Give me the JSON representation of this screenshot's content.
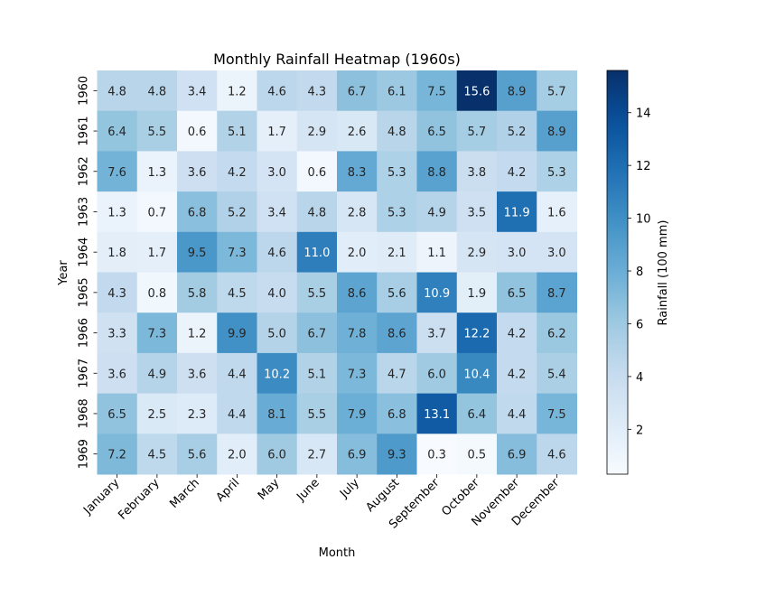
{
  "chart_data": {
    "type": "heatmap",
    "title": "Monthly Rainfall Heatmap (1960s)",
    "xlabel": "Month",
    "ylabel": "Year",
    "colorbar_label": "Rainfall (100 mm)",
    "colormap": "Blues",
    "x": [
      "January",
      "February",
      "March",
      "April",
      "May",
      "June",
      "July",
      "August",
      "September",
      "October",
      "November",
      "December"
    ],
    "y": [
      "1960",
      "1961",
      "1962",
      "1963",
      "1964",
      "1965",
      "1966",
      "1967",
      "1968",
      "1969"
    ],
    "values": [
      [
        4.8,
        4.8,
        3.4,
        1.2,
        4.6,
        4.3,
        6.7,
        6.1,
        7.5,
        15.6,
        8.9,
        5.7
      ],
      [
        6.4,
        5.5,
        0.6,
        5.1,
        1.7,
        2.9,
        2.6,
        4.8,
        6.5,
        5.7,
        5.2,
        8.9
      ],
      [
        7.6,
        1.3,
        3.6,
        4.2,
        3.0,
        0.6,
        8.3,
        5.3,
        8.8,
        3.8,
        4.2,
        5.3
      ],
      [
        1.3,
        0.7,
        6.8,
        5.2,
        3.4,
        4.8,
        2.8,
        5.3,
        4.9,
        3.5,
        11.9,
        1.6
      ],
      [
        1.8,
        1.7,
        9.5,
        7.3,
        4.6,
        11.0,
        2.0,
        2.1,
        1.1,
        2.9,
        3.0,
        3.0
      ],
      [
        4.3,
        0.8,
        5.8,
        4.5,
        4.0,
        5.5,
        8.6,
        5.6,
        10.9,
        1.9,
        6.5,
        8.7
      ],
      [
        3.3,
        7.3,
        1.2,
        9.9,
        5.0,
        6.7,
        7.8,
        8.6,
        3.7,
        12.2,
        4.2,
        6.2
      ],
      [
        3.6,
        4.9,
        3.6,
        4.4,
        10.2,
        5.1,
        7.3,
        4.7,
        6.0,
        10.4,
        4.2,
        5.4
      ],
      [
        6.5,
        2.5,
        2.3,
        4.4,
        8.1,
        5.5,
        7.9,
        6.8,
        13.1,
        6.4,
        4.4,
        7.5
      ],
      [
        7.2,
        4.5,
        5.6,
        2.0,
        6.0,
        2.7,
        6.9,
        9.3,
        0.3,
        0.5,
        6.9,
        4.6
      ]
    ],
    "value_range": [
      0.3,
      15.6
    ],
    "colorbar_ticks": [
      2,
      4,
      6,
      8,
      10,
      12,
      14
    ],
    "annotated": true
  }
}
